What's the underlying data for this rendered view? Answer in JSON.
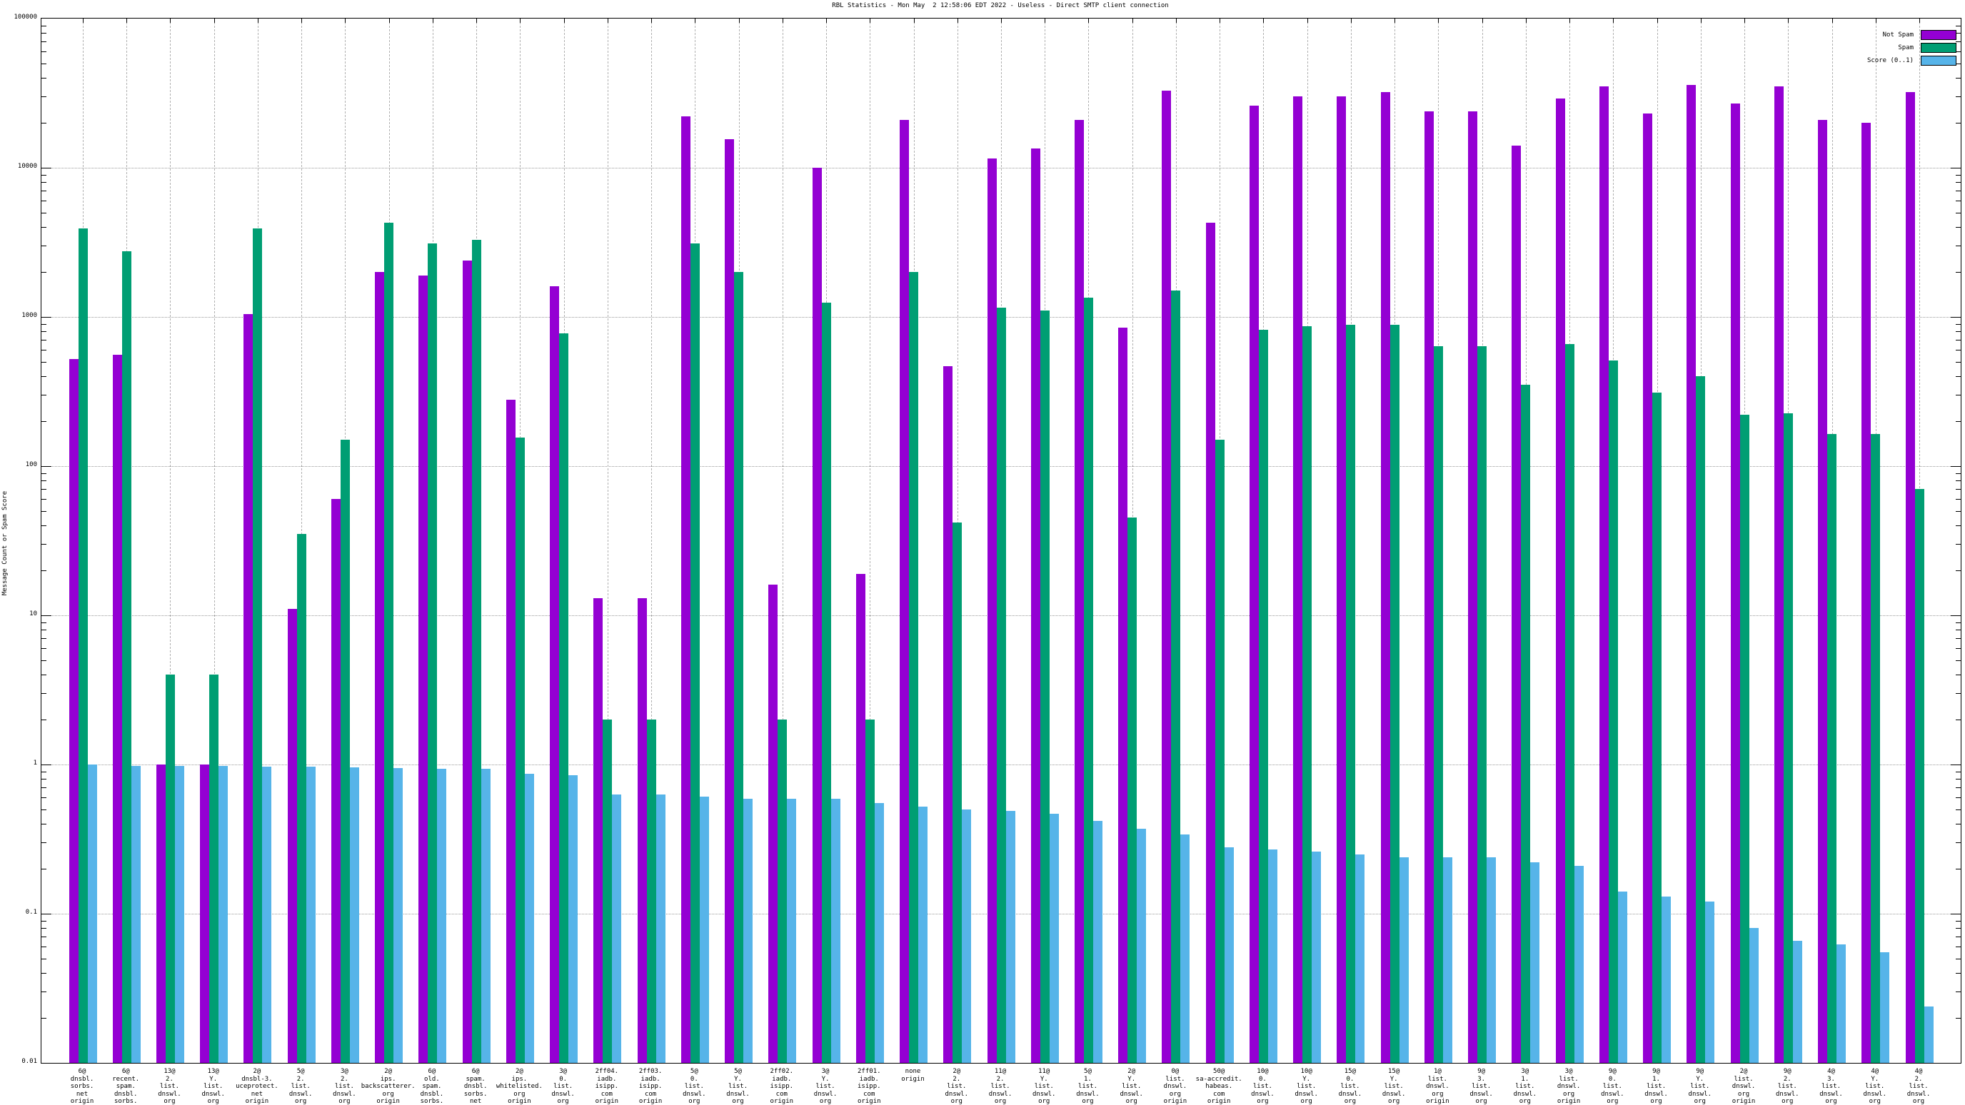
{
  "title": "RBL Statistics - Mon May  2 12:58:06 EDT 2022 - Useless - Direct SMTP client connection",
  "y_axis": {
    "label": "Message Count or Spam Score",
    "tick_labels": [
      "100000",
      "10000",
      "1000",
      "100",
      "10",
      "1",
      "0.1",
      "0.01"
    ]
  },
  "legend": {
    "items": [
      {
        "label": "Not Spam",
        "color": "#9400d3"
      },
      {
        "label": "Spam",
        "color": "#009e73"
      },
      {
        "label": "Score (0..1)",
        "color": "#56b4e9"
      }
    ]
  },
  "chart_data": {
    "type": "bar",
    "y_scale": "log",
    "ylim": [
      0.01,
      100000
    ],
    "grid": "on",
    "legend_position": "top-right",
    "title": "RBL Statistics - Mon May  2 12:58:06 EDT 2022 - Useless - Direct SMTP client connection",
    "ylabel": "Message Count or Spam Score",
    "xlabel": "",
    "categories_lines": [
      [
        "6@",
        "dnsbl.",
        "sorbs.",
        "net",
        "origin"
      ],
      [
        "6@",
        "recent.",
        "spam.",
        "dnsbl.",
        "sorbs.",
        "net",
        "origin"
      ],
      [
        "13@",
        "2.",
        "list.",
        "dnswl.",
        "org",
        "origin"
      ],
      [
        "13@",
        "Y.",
        "list.",
        "dnswl.",
        "org",
        "origin"
      ],
      [
        "2@",
        "dnsbl-3.",
        "uceprotect.",
        "net",
        "origin"
      ],
      [
        "5@",
        "2.",
        "list.",
        "dnswl.",
        "org",
        "origin"
      ],
      [
        "3@",
        "2.",
        "list.",
        "dnswl.",
        "org",
        "origin"
      ],
      [
        "2@",
        "ips.",
        "backscatterer.",
        "org",
        "origin"
      ],
      [
        "6@",
        "old.",
        "spam.",
        "dnsbl.",
        "sorbs.",
        "net",
        "origin"
      ],
      [
        "6@",
        "spam.",
        "dnsbl.",
        "sorbs.",
        "net",
        "origin"
      ],
      [
        "2@",
        "ips.",
        "whitelisted.",
        "org",
        "origin"
      ],
      [
        "3@",
        "0.",
        "list.",
        "dnswl.",
        "org",
        "origin"
      ],
      [
        "2ff04.",
        "iadb.",
        "isipp.",
        "com",
        "origin"
      ],
      [
        "2ff03.",
        "iadb.",
        "isipp.",
        "com",
        "origin"
      ],
      [
        "5@",
        "0.",
        "list.",
        "dnswl.",
        "org",
        "origin"
      ],
      [
        "5@",
        "Y.",
        "list.",
        "dnswl.",
        "org",
        "origin"
      ],
      [
        "2ff02.",
        "iadb.",
        "isipp.",
        "com",
        "origin"
      ],
      [
        "3@",
        "Y.",
        "list.",
        "dnswl.",
        "org",
        "origin"
      ],
      [
        "2ff01.",
        "iadb.",
        "isipp.",
        "com",
        "origin"
      ],
      [
        "none",
        "origin"
      ],
      [
        "2@",
        "2.",
        "list.",
        "dnswl.",
        "org",
        "origin"
      ],
      [
        "11@",
        "2.",
        "list.",
        "dnswl.",
        "org",
        "origin"
      ],
      [
        "11@",
        "Y.",
        "list.",
        "dnswl.",
        "org",
        "origin"
      ],
      [
        "5@",
        "1.",
        "list.",
        "dnswl.",
        "org",
        "origin"
      ],
      [
        "2@",
        "Y.",
        "list.",
        "dnswl.",
        "org",
        "origin"
      ],
      [
        "0@",
        "list.",
        "dnswl.",
        "org",
        "origin"
      ],
      [
        "50@",
        "sa-accredit.",
        "habeas.",
        "com",
        "origin"
      ],
      [
        "10@",
        "0.",
        "list.",
        "dnswl.",
        "org",
        "origin"
      ],
      [
        "10@",
        "Y.",
        "list.",
        "dnswl.",
        "org",
        "origin"
      ],
      [
        "15@",
        "0.",
        "list.",
        "dnswl.",
        "org",
        "origin"
      ],
      [
        "15@",
        "Y.",
        "list.",
        "dnswl.",
        "org",
        "origin"
      ],
      [
        "1@",
        "list.",
        "dnswl.",
        "org",
        "origin"
      ],
      [
        "9@",
        "3.",
        "list.",
        "dnswl.",
        "org",
        "origin"
      ],
      [
        "3@",
        "1.",
        "list.",
        "dnswl.",
        "org",
        "origin"
      ],
      [
        "3@",
        "list.",
        "dnswl.",
        "org",
        "origin"
      ],
      [
        "9@",
        "0.",
        "list.",
        "dnswl.",
        "org",
        "origin"
      ],
      [
        "9@",
        "1.",
        "list.",
        "dnswl.",
        "org",
        "origin"
      ],
      [
        "9@",
        "Y.",
        "list.",
        "dnswl.",
        "org",
        "origin"
      ],
      [
        "2@",
        "list.",
        "dnswl.",
        "org",
        "origin"
      ],
      [
        "9@",
        "2.",
        "list.",
        "dnswl.",
        "org",
        "origin"
      ],
      [
        "4@",
        "3.",
        "list.",
        "dnswl.",
        "org",
        "origin"
      ],
      [
        "4@",
        "Y.",
        "list.",
        "dnswl.",
        "org",
        "origin"
      ],
      [
        "4@",
        "2.",
        "list.",
        "dnswl.",
        "org",
        "origin"
      ]
    ],
    "series": [
      {
        "name": "Not Spam",
        "color": "#9400d3",
        "values": [
          520,
          560,
          1,
          1,
          1050,
          11,
          60,
          2000,
          1900,
          2400,
          280,
          1600,
          13,
          13,
          22000,
          15500,
          16,
          10000,
          19,
          21000,
          470,
          11500,
          13500,
          21000,
          850,
          33000,
          4300,
          26000,
          30000,
          30000,
          32000,
          24000,
          24000,
          14000,
          29000,
          35000,
          23000,
          36000,
          27000,
          35000,
          21000,
          20000,
          32000
        ]
      },
      {
        "name": "Spam",
        "color": "#009e73",
        "values": [
          3900,
          2750,
          4,
          4,
          3900,
          35,
          150,
          4300,
          3100,
          3300,
          155,
          780,
          2,
          2,
          3100,
          2000,
          2,
          1250,
          2,
          2000,
          42,
          1150,
          1100,
          1350,
          45,
          1500,
          150,
          820,
          870,
          890,
          890,
          640,
          640,
          350,
          655,
          510,
          310,
          400,
          220,
          225,
          165,
          165,
          70
        ]
      },
      {
        "name": "Score (0..1)",
        "color": "#56b4e9",
        "values": [
          1.0,
          0.98,
          0.98,
          0.98,
          0.97,
          0.97,
          0.96,
          0.95,
          0.94,
          0.94,
          0.87,
          0.85,
          0.63,
          0.63,
          0.61,
          0.59,
          0.59,
          0.59,
          0.55,
          0.52,
          0.5,
          0.49,
          0.47,
          0.42,
          0.37,
          0.34,
          0.28,
          0.27,
          0.26,
          0.25,
          0.24,
          0.24,
          0.24,
          0.22,
          0.21,
          0.14,
          0.13,
          0.12,
          0.08,
          0.066,
          0.062,
          0.055,
          0.024
        ]
      }
    ]
  }
}
